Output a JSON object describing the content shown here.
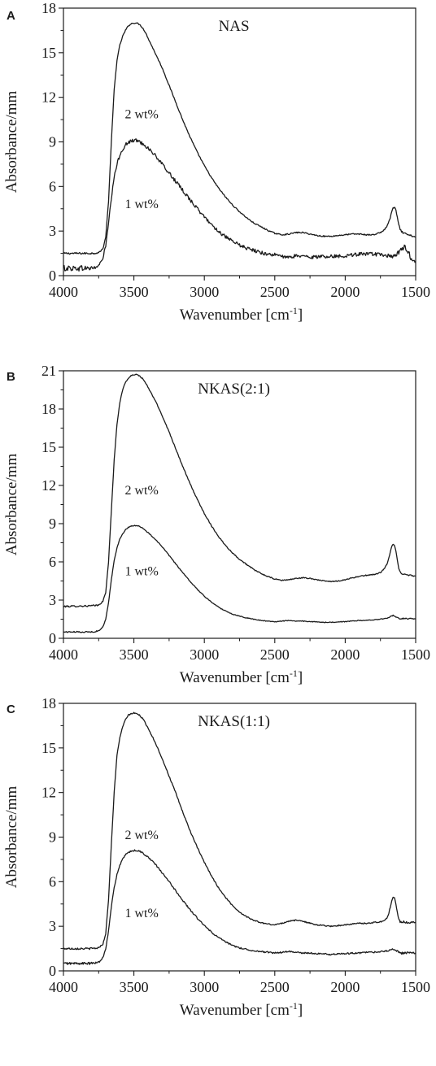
{
  "figure": {
    "background": "#ffffff",
    "line_color": "#1a1a1a"
  },
  "chart_data": [
    {
      "panel": "A",
      "type": "line",
      "title": "NAS",
      "xlabel": "Wavenumber [cm",
      "xlabel_sup": "-1",
      "xlabel_end": "]",
      "ylabel": "Absorbance/mm",
      "xlim": [
        4000,
        1500
      ],
      "ylim": [
        0,
        18
      ],
      "xticks": [
        4000,
        3500,
        3000,
        2500,
        2000,
        1500
      ],
      "yticks": [
        0,
        3,
        6,
        9,
        12,
        15,
        18
      ],
      "series": [
        {
          "name": "2 wt%",
          "noise": 0.04,
          "x": [
            4000,
            3800,
            3750,
            3720,
            3700,
            3680,
            3660,
            3640,
            3620,
            3600,
            3580,
            3560,
            3540,
            3520,
            3500,
            3480,
            3460,
            3440,
            3420,
            3400,
            3350,
            3300,
            3250,
            3200,
            3150,
            3100,
            3050,
            3000,
            2950,
            2900,
            2850,
            2800,
            2750,
            2700,
            2650,
            2600,
            2550,
            2500,
            2450,
            2400,
            2350,
            2300,
            2250,
            2200,
            2150,
            2100,
            2050,
            2000,
            1950,
            1900,
            1850,
            1800,
            1750,
            1720,
            1700,
            1680,
            1670,
            1660,
            1650,
            1640,
            1630,
            1620,
            1610,
            1600,
            1580,
            1560,
            1540,
            1520,
            1500
          ],
          "y": [
            1.5,
            1.5,
            1.55,
            1.8,
            2.6,
            5.0,
            9.0,
            12.5,
            14.5,
            15.5,
            16.1,
            16.5,
            16.8,
            16.95,
            17.0,
            17.0,
            16.9,
            16.7,
            16.4,
            16.0,
            15.0,
            14.0,
            12.8,
            11.6,
            10.4,
            9.3,
            8.3,
            7.4,
            6.6,
            5.9,
            5.3,
            4.75,
            4.3,
            3.9,
            3.55,
            3.3,
            3.05,
            2.85,
            2.75,
            2.8,
            2.9,
            2.9,
            2.8,
            2.7,
            2.65,
            2.65,
            2.7,
            2.75,
            2.8,
            2.8,
            2.75,
            2.75,
            2.9,
            3.1,
            3.4,
            3.9,
            4.3,
            4.55,
            4.6,
            4.4,
            3.9,
            3.4,
            3.1,
            2.95,
            2.85,
            2.75,
            2.7,
            2.65,
            2.6
          ],
          "label_at": [
            3445,
            10.6
          ]
        },
        {
          "name": "1 wt%",
          "noise": 0.12,
          "x": [
            4000,
            3900,
            3800,
            3760,
            3740,
            3720,
            3700,
            3680,
            3660,
            3640,
            3620,
            3600,
            3580,
            3560,
            3540,
            3520,
            3500,
            3480,
            3460,
            3440,
            3400,
            3350,
            3300,
            3250,
            3200,
            3150,
            3100,
            3050,
            3000,
            2950,
            2900,
            2850,
            2800,
            2750,
            2700,
            2650,
            2600,
            2550,
            2500,
            2450,
            2400,
            2350,
            2300,
            2250,
            2200,
            2150,
            2100,
            2050,
            2000,
            1950,
            1900,
            1850,
            1800,
            1750,
            1700,
            1680,
            1650,
            1620,
            1600,
            1580,
            1560,
            1540,
            1520,
            1500
          ],
          "y": [
            0.5,
            0.5,
            0.5,
            0.6,
            0.8,
            1.2,
            2.0,
            3.5,
            5.2,
            6.6,
            7.5,
            8.1,
            8.5,
            8.8,
            8.95,
            9.05,
            9.1,
            9.1,
            9.0,
            8.9,
            8.6,
            8.1,
            7.5,
            6.9,
            6.3,
            5.7,
            5.1,
            4.5,
            3.95,
            3.45,
            3.0,
            2.6,
            2.3,
            2.05,
            1.85,
            1.7,
            1.55,
            1.45,
            1.4,
            1.3,
            1.2,
            1.35,
            1.3,
            1.25,
            1.25,
            1.3,
            1.3,
            1.3,
            1.35,
            1.4,
            1.45,
            1.45,
            1.45,
            1.4,
            1.35,
            1.3,
            1.3,
            1.5,
            1.8,
            2.0,
            1.7,
            1.3,
            1.1,
            1.0
          ],
          "label_at": [
            3445,
            4.55
          ]
        }
      ]
    },
    {
      "panel": "B",
      "type": "line",
      "title": "NKAS(2:1)",
      "xlabel": "Wavenumber [cm",
      "xlabel_sup": "-1",
      "xlabel_end": "]",
      "ylabel": "Absorbance/mm",
      "xlim": [
        4000,
        1500
      ],
      "ylim": [
        0,
        21
      ],
      "xticks": [
        4000,
        3500,
        3000,
        2500,
        2000,
        1500
      ],
      "yticks": [
        0,
        3,
        6,
        9,
        12,
        15,
        18,
        21
      ],
      "series": [
        {
          "name": "2 wt%",
          "noise": 0.04,
          "x": [
            4000,
            3800,
            3750,
            3720,
            3700,
            3680,
            3660,
            3640,
            3620,
            3600,
            3580,
            3560,
            3540,
            3520,
            3500,
            3480,
            3460,
            3440,
            3420,
            3400,
            3350,
            3300,
            3250,
            3200,
            3150,
            3100,
            3050,
            3000,
            2950,
            2900,
            2850,
            2800,
            2750,
            2700,
            2650,
            2600,
            2550,
            2500,
            2450,
            2400,
            2350,
            2300,
            2250,
            2200,
            2150,
            2100,
            2050,
            2000,
            1950,
            1900,
            1850,
            1800,
            1750,
            1720,
            1700,
            1690,
            1680,
            1670,
            1660,
            1650,
            1640,
            1630,
            1620,
            1610,
            1600,
            1580,
            1560,
            1540,
            1520,
            1500
          ],
          "y": [
            2.5,
            2.55,
            2.6,
            2.9,
            3.6,
            6.0,
            10.0,
            14.0,
            16.8,
            18.5,
            19.5,
            20.1,
            20.4,
            20.6,
            20.7,
            20.7,
            20.6,
            20.4,
            20.1,
            19.7,
            18.7,
            17.5,
            16.2,
            14.8,
            13.4,
            12.1,
            10.9,
            9.8,
            8.85,
            8.0,
            7.3,
            6.7,
            6.2,
            5.8,
            5.4,
            5.1,
            4.85,
            4.65,
            4.55,
            4.6,
            4.7,
            4.75,
            4.7,
            4.6,
            4.5,
            4.45,
            4.5,
            4.6,
            4.75,
            4.85,
            4.95,
            5.0,
            5.15,
            5.5,
            5.9,
            6.3,
            6.8,
            7.2,
            7.4,
            7.3,
            6.8,
            6.1,
            5.5,
            5.2,
            5.1,
            5.05,
            5.0,
            4.95,
            4.9,
            4.9
          ],
          "label_at": [
            3445,
            11.3
          ]
        },
        {
          "name": "1 wt%",
          "noise": 0.03,
          "x": [
            4000,
            3800,
            3760,
            3740,
            3720,
            3700,
            3680,
            3660,
            3640,
            3620,
            3600,
            3580,
            3560,
            3540,
            3520,
            3500,
            3480,
            3460,
            3440,
            3400,
            3350,
            3300,
            3250,
            3200,
            3150,
            3100,
            3050,
            3000,
            2950,
            2900,
            2850,
            2800,
            2750,
            2700,
            2650,
            2600,
            2550,
            2500,
            2450,
            2400,
            2350,
            2300,
            2250,
            2200,
            2150,
            2100,
            2050,
            2000,
            1950,
            1900,
            1850,
            1800,
            1750,
            1700,
            1680,
            1660,
            1650,
            1640,
            1620,
            1600,
            1580,
            1560,
            1540,
            1520,
            1500
          ],
          "y": [
            0.5,
            0.5,
            0.55,
            0.65,
            0.9,
            1.5,
            2.8,
            4.6,
            6.1,
            7.1,
            7.8,
            8.2,
            8.5,
            8.7,
            8.8,
            8.85,
            8.85,
            8.8,
            8.65,
            8.3,
            7.8,
            7.2,
            6.5,
            5.8,
            5.1,
            4.45,
            3.85,
            3.3,
            2.85,
            2.45,
            2.15,
            1.9,
            1.75,
            1.6,
            1.5,
            1.4,
            1.35,
            1.3,
            1.35,
            1.4,
            1.35,
            1.35,
            1.3,
            1.3,
            1.25,
            1.25,
            1.3,
            1.3,
            1.35,
            1.4,
            1.4,
            1.45,
            1.5,
            1.6,
            1.7,
            1.8,
            1.75,
            1.65,
            1.55,
            1.55,
            1.55,
            1.55,
            1.55,
            1.55,
            1.55
          ],
          "label_at": [
            3445,
            4.95
          ]
        }
      ]
    },
    {
      "panel": "C",
      "type": "line",
      "title": "NKAS(1:1)",
      "xlabel": "Wavenumber [cm",
      "xlabel_sup": "-1",
      "xlabel_end": "]",
      "ylabel": "Absorbance/mm",
      "xlim": [
        4000,
        1500
      ],
      "ylim": [
        0,
        18
      ],
      "xticks": [
        4000,
        3500,
        3000,
        2500,
        2000,
        1500
      ],
      "yticks": [
        0,
        3,
        6,
        9,
        12,
        15,
        18
      ],
      "series": [
        {
          "name": "2 wt%",
          "noise": 0.04,
          "x": [
            4000,
            3800,
            3750,
            3720,
            3700,
            3680,
            3660,
            3640,
            3620,
            3600,
            3580,
            3560,
            3540,
            3520,
            3500,
            3480,
            3460,
            3440,
            3420,
            3400,
            3350,
            3300,
            3250,
            3200,
            3150,
            3100,
            3050,
            3000,
            2950,
            2900,
            2850,
            2800,
            2750,
            2700,
            2650,
            2600,
            2550,
            2500,
            2450,
            2400,
            2350,
            2300,
            2250,
            2200,
            2150,
            2100,
            2050,
            2000,
            1950,
            1900,
            1850,
            1800,
            1750,
            1720,
            1700,
            1690,
            1680,
            1670,
            1660,
            1650,
            1640,
            1630,
            1620,
            1610,
            1600,
            1580,
            1560,
            1540,
            1520,
            1500
          ],
          "y": [
            1.5,
            1.5,
            1.55,
            1.8,
            2.5,
            4.8,
            8.5,
            12.0,
            14.5,
            15.7,
            16.4,
            16.9,
            17.2,
            17.3,
            17.35,
            17.3,
            17.2,
            17.0,
            16.7,
            16.35,
            15.4,
            14.3,
            13.1,
            11.9,
            10.6,
            9.4,
            8.3,
            7.3,
            6.4,
            5.6,
            4.95,
            4.4,
            3.95,
            3.65,
            3.4,
            3.25,
            3.15,
            3.1,
            3.2,
            3.35,
            3.4,
            3.35,
            3.2,
            3.1,
            3.05,
            3.0,
            3.05,
            3.1,
            3.15,
            3.2,
            3.2,
            3.25,
            3.3,
            3.4,
            3.6,
            3.9,
            4.3,
            4.7,
            4.95,
            4.9,
            4.5,
            3.9,
            3.45,
            3.3,
            3.3,
            3.3,
            3.25,
            3.25,
            3.25,
            3.25
          ],
          "label_at": [
            3445,
            8.85
          ]
        },
        {
          "name": "1 wt%",
          "noise": 0.05,
          "x": [
            4000,
            3800,
            3760,
            3740,
            3720,
            3700,
            3680,
            3660,
            3640,
            3620,
            3600,
            3580,
            3560,
            3540,
            3520,
            3500,
            3480,
            3460,
            3440,
            3400,
            3350,
            3300,
            3250,
            3200,
            3150,
            3100,
            3050,
            3000,
            2950,
            2900,
            2850,
            2800,
            2750,
            2700,
            2650,
            2600,
            2550,
            2500,
            2450,
            2400,
            2350,
            2300,
            2250,
            2200,
            2150,
            2100,
            2050,
            2000,
            1950,
            1900,
            1850,
            1800,
            1750,
            1700,
            1680,
            1660,
            1650,
            1640,
            1620,
            1600,
            1580,
            1560,
            1540,
            1520,
            1500
          ],
          "y": [
            0.5,
            0.5,
            0.55,
            0.65,
            0.9,
            1.5,
            2.7,
            4.3,
            5.6,
            6.5,
            7.1,
            7.5,
            7.8,
            7.95,
            8.05,
            8.1,
            8.1,
            8.05,
            7.95,
            7.65,
            7.2,
            6.6,
            6.0,
            5.35,
            4.7,
            4.1,
            3.55,
            3.05,
            2.6,
            2.25,
            1.95,
            1.7,
            1.55,
            1.45,
            1.35,
            1.3,
            1.25,
            1.2,
            1.25,
            1.3,
            1.25,
            1.2,
            1.2,
            1.15,
            1.15,
            1.1,
            1.15,
            1.15,
            1.2,
            1.2,
            1.25,
            1.25,
            1.3,
            1.35,
            1.4,
            1.45,
            1.4,
            1.35,
            1.25,
            1.2,
            1.2,
            1.2,
            1.2,
            1.2,
            1.2
          ],
          "label_at": [
            3445,
            3.6
          ]
        }
      ]
    }
  ]
}
